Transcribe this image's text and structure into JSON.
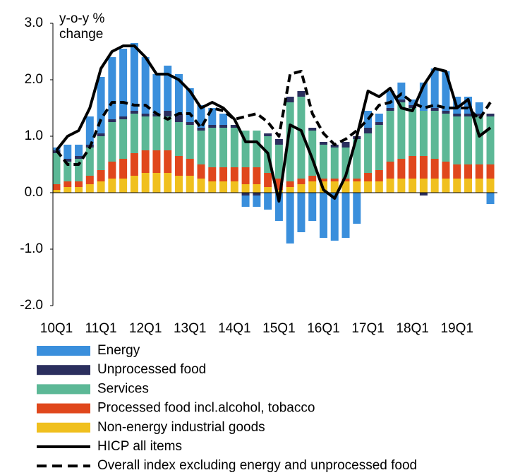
{
  "chart_data": {
    "type": "bar",
    "stacked": true,
    "y_label": "y-o-y % change",
    "categories": [
      "10Q1",
      null,
      null,
      null,
      "11Q1",
      null,
      null,
      null,
      "12Q1",
      null,
      null,
      null,
      "13Q1",
      null,
      null,
      null,
      "14Q1",
      null,
      null,
      null,
      "15Q1",
      null,
      null,
      null,
      "16Q1",
      null,
      null,
      null,
      "17Q1",
      null,
      null,
      null,
      "18Q1",
      null,
      null,
      null,
      "19Q1",
      null,
      null,
      null
    ],
    "ylim": [
      -2,
      3
    ],
    "yticks": [
      {
        "value": 3,
        "label": "3.0"
      },
      {
        "value": 2,
        "label": "2.0"
      },
      {
        "value": 1,
        "label": "1.0"
      },
      {
        "value": 0,
        "label": "0.0"
      },
      {
        "value": -1,
        "label": "-1.0"
      },
      {
        "value": -2,
        "label": "-2.0"
      }
    ],
    "series": [
      {
        "name": "Energy",
        "color": "#3a8fdc",
        "values": [
          0.05,
          0.25,
          0.2,
          0.5,
          1.0,
          1.1,
          1.2,
          1.2,
          1.0,
          0.7,
          0.8,
          0.7,
          0.6,
          0.4,
          0.3,
          0.2,
          0.0,
          -0.2,
          -0.2,
          -0.3,
          -0.5,
          -0.9,
          -0.7,
          -0.5,
          -0.8,
          -0.85,
          -0.8,
          -0.55,
          0.3,
          0.15,
          0.3,
          0.3,
          0.1,
          0.5,
          0.7,
          0.7,
          0.3,
          0.3,
          0.2,
          -0.2
        ]
      },
      {
        "name": "Unprocessed food",
        "color": "#2b2f5e",
        "values": [
          0.05,
          0.05,
          0.05,
          0.05,
          0.05,
          0.05,
          0.05,
          0.05,
          0.05,
          0.05,
          0.1,
          0.15,
          0.05,
          0.05,
          0.05,
          0.05,
          0.05,
          -0.05,
          -0.05,
          0.05,
          0.1,
          0.1,
          0.1,
          0.05,
          0.05,
          0.05,
          0.1,
          0.05,
          0.1,
          0.05,
          0.05,
          0.05,
          0.05,
          -0.05,
          0.05,
          0.05,
          0.05,
          0.05,
          0.05,
          0.05
        ]
      },
      {
        "name": "Services",
        "color": "#5cb896",
        "values": [
          0.55,
          0.35,
          0.4,
          0.5,
          0.6,
          0.7,
          0.7,
          0.7,
          0.6,
          0.6,
          0.6,
          0.6,
          0.6,
          0.6,
          0.7,
          0.7,
          0.7,
          0.65,
          0.65,
          0.65,
          0.6,
          1.4,
          1.45,
          0.8,
          0.6,
          0.55,
          0.55,
          0.7,
          0.7,
          0.8,
          0.9,
          1.0,
          0.85,
          0.8,
          0.85,
          0.85,
          0.85,
          0.85,
          0.85,
          0.85
        ]
      },
      {
        "name": "Processed food incl.alcohol, tobacco",
        "color": "#e0471c",
        "values": [
          0.1,
          0.1,
          0.1,
          0.15,
          0.2,
          0.3,
          0.35,
          0.4,
          0.4,
          0.4,
          0.4,
          0.35,
          0.3,
          0.25,
          0.25,
          0.25,
          0.25,
          0.3,
          0.3,
          0.25,
          0.2,
          0.1,
          0.1,
          0.1,
          0.05,
          0.05,
          0.05,
          0.05,
          0.15,
          0.2,
          0.3,
          0.35,
          0.4,
          0.4,
          0.35,
          0.3,
          0.25,
          0.25,
          0.25,
          0.25
        ]
      },
      {
        "name": "Non-energy industrial goods",
        "color": "#f0c01e",
        "values": [
          0.05,
          0.1,
          0.1,
          0.15,
          0.2,
          0.25,
          0.25,
          0.3,
          0.35,
          0.35,
          0.35,
          0.3,
          0.3,
          0.25,
          0.2,
          0.2,
          0.2,
          0.15,
          0.15,
          0.1,
          0.05,
          0.1,
          0.15,
          0.2,
          0.2,
          0.2,
          0.2,
          0.2,
          0.2,
          0.2,
          0.25,
          0.25,
          0.25,
          0.25,
          0.25,
          0.25,
          0.25,
          0.25,
          0.25,
          0.25
        ]
      },
      {
        "name": "HICP all items",
        "type": "line",
        "color": "#000000",
        "dashed": false,
        "values": [
          0.75,
          1.0,
          1.1,
          1.5,
          2.2,
          2.5,
          2.6,
          2.6,
          2.4,
          2.1,
          2.1,
          2.0,
          1.8,
          1.5,
          1.6,
          1.5,
          1.3,
          0.9,
          0.9,
          0.7,
          -0.15,
          1.2,
          1.1,
          0.6,
          0.05,
          -0.1,
          0.3,
          1.0,
          1.8,
          1.7,
          1.85,
          1.5,
          1.45,
          1.9,
          2.2,
          2.15,
          1.5,
          1.65,
          1.0,
          1.15
        ]
      },
      {
        "name": "Overall index excluding energy and unprocessed food",
        "type": "line",
        "color": "#000000",
        "dashed": true,
        "values": [
          0.75,
          0.5,
          0.5,
          0.8,
          1.3,
          1.6,
          1.6,
          1.55,
          1.55,
          1.4,
          1.3,
          1.4,
          1.4,
          1.15,
          1.5,
          1.45,
          1.3,
          1.35,
          1.4,
          1.25,
          1.0,
          2.1,
          2.15,
          1.4,
          1.05,
          0.85,
          0.95,
          1.1,
          1.3,
          1.55,
          1.6,
          1.75,
          1.6,
          1.5,
          1.55,
          1.5,
          1.5,
          1.5,
          1.3,
          1.6
        ]
      }
    ]
  }
}
